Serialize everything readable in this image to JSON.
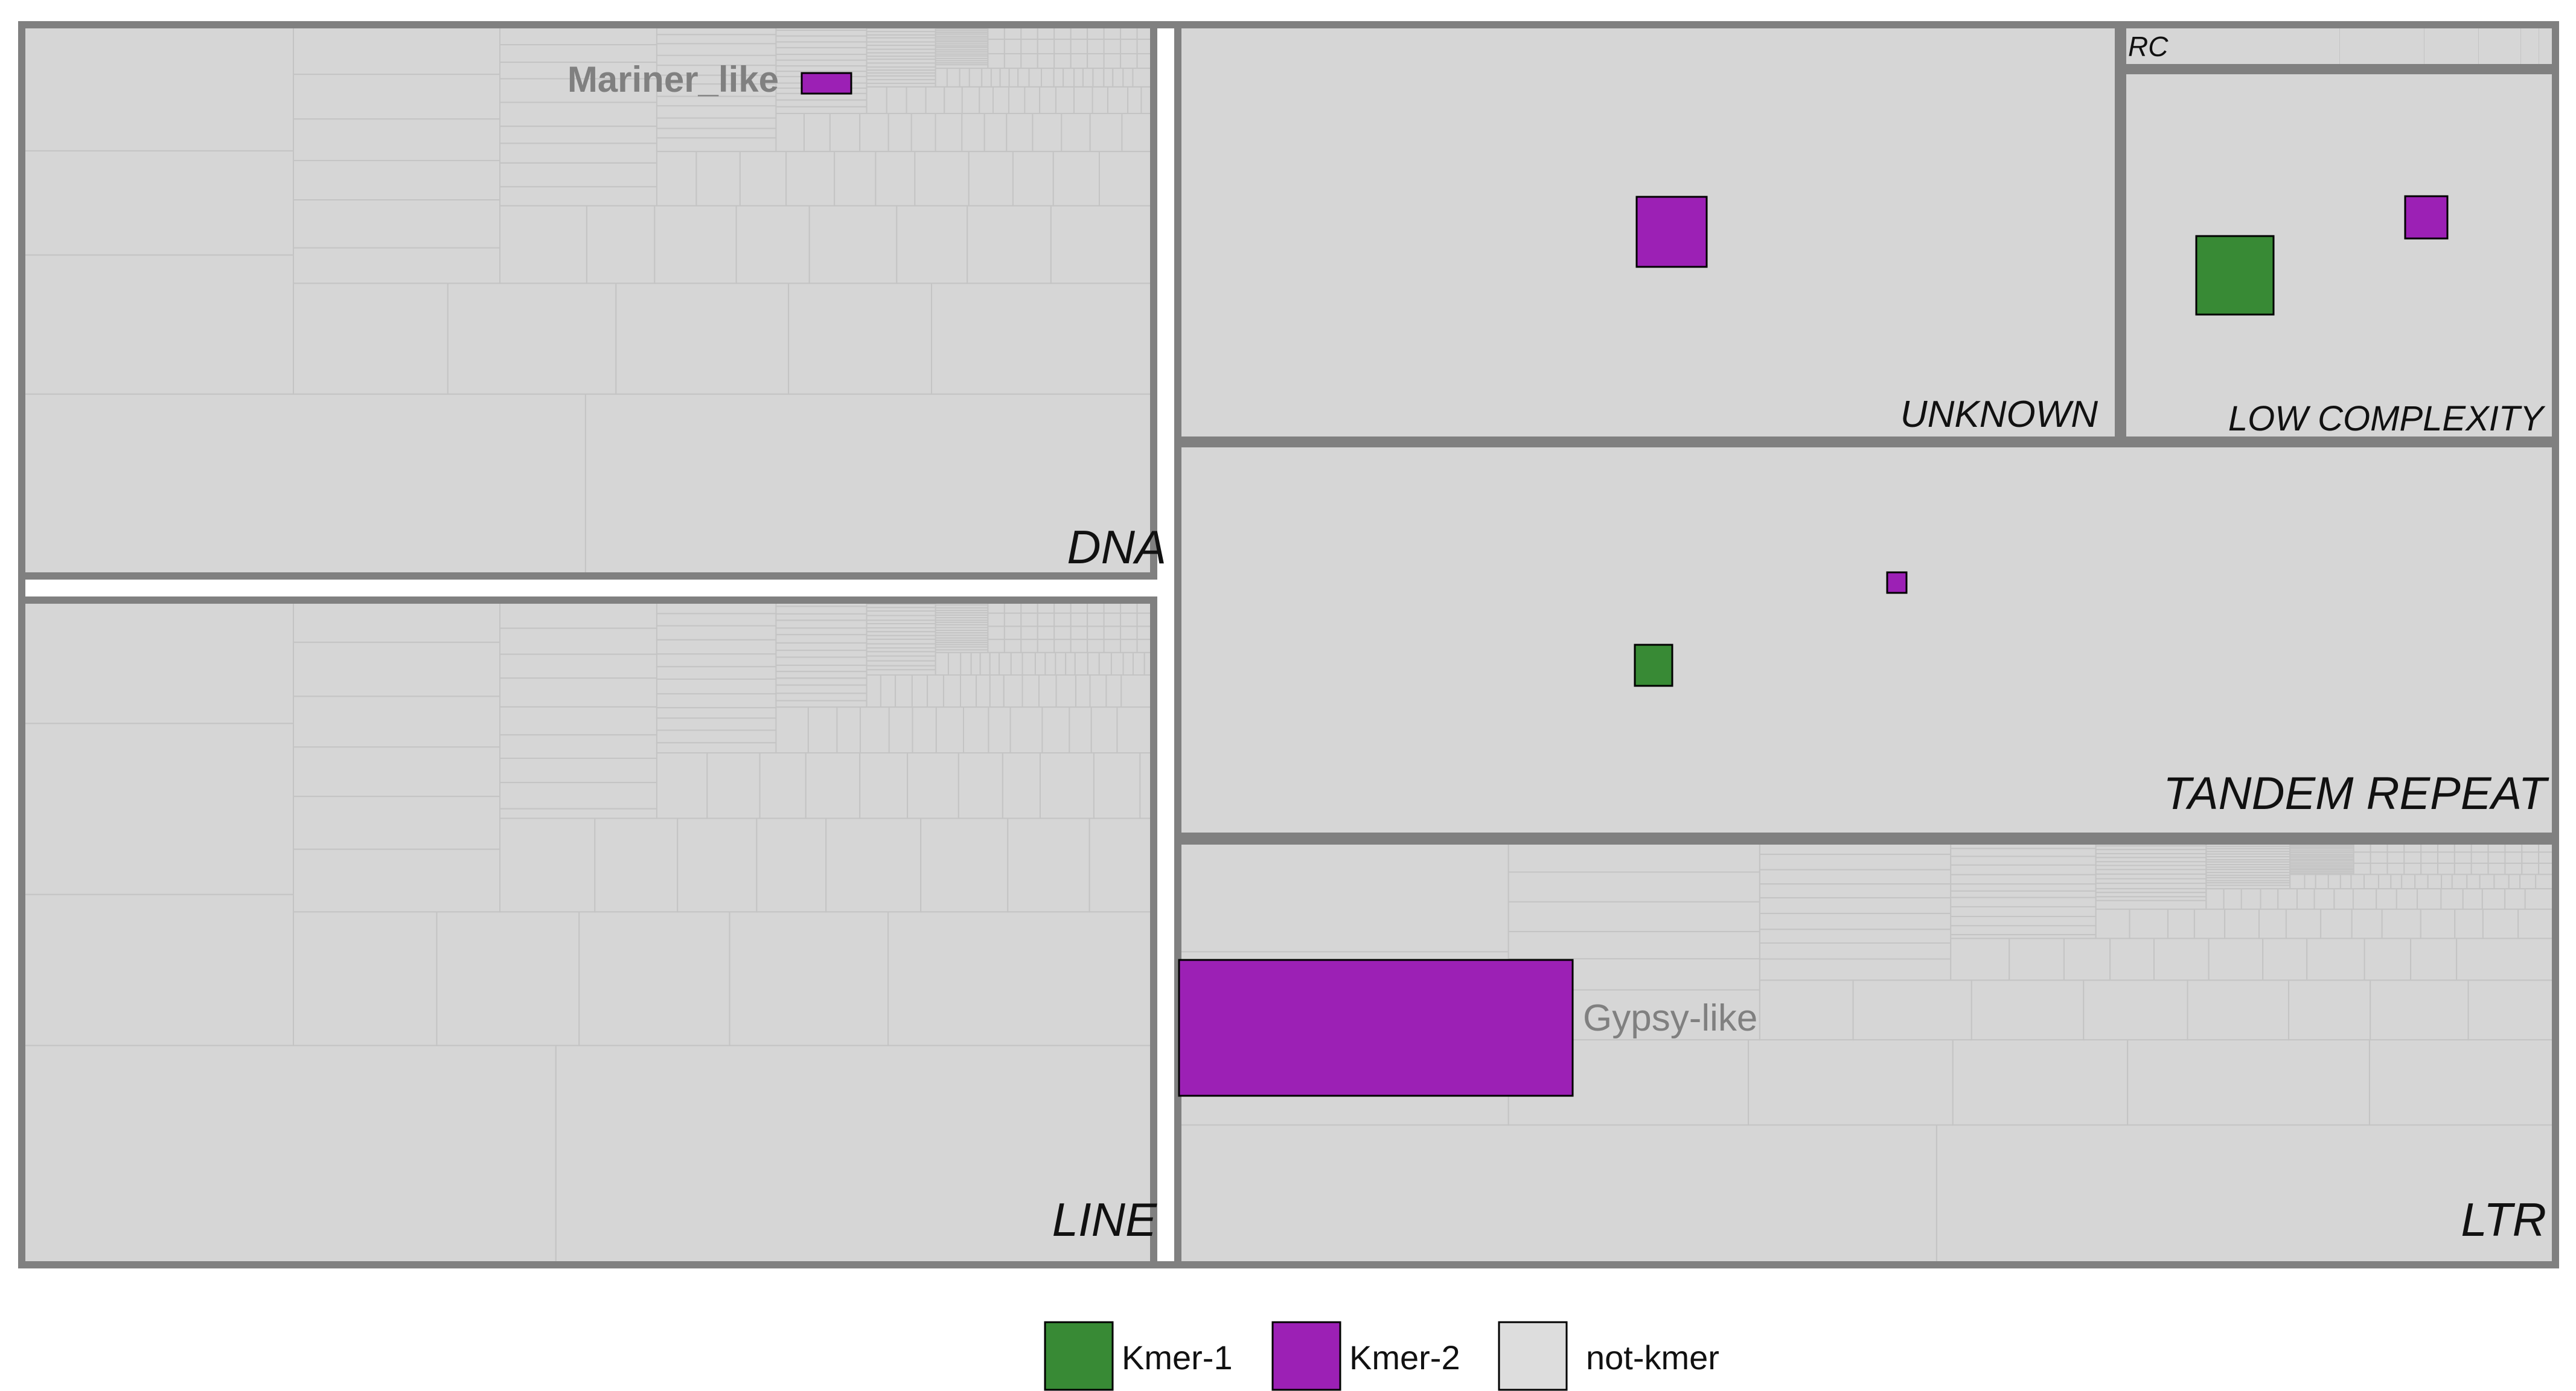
{
  "colors": {
    "background": "#ffffff",
    "tile_fill": "#d6d6d6",
    "tile_minor_stroke": "#c4c4c4",
    "tile_major_stroke": "#808080",
    "kmer1": "#388a35",
    "kmer2": "#9c20b5",
    "mark_stroke": "#000000",
    "category_label": "#111111",
    "family_label": "#808080"
  },
  "chart_data": {
    "type": "treemap",
    "title": "",
    "categories": [
      {
        "key": "dna",
        "name": "DNA"
      },
      {
        "key": "line",
        "name": "LINE"
      },
      {
        "key": "unknown",
        "name": "UNKNOWN"
      },
      {
        "key": "rc",
        "name": "RC"
      },
      {
        "key": "lowcomplexity",
        "name": "LOW COMPLEXITY"
      },
      {
        "key": "tandem",
        "name": "TANDEM REPEAT"
      },
      {
        "key": "ltr",
        "name": "LTR"
      }
    ],
    "highlighted_families": [
      {
        "category": "DNA",
        "family": "Mariner_like",
        "label": "Mariner_like",
        "class": "Kmer-2"
      },
      {
        "category": "LTR",
        "family": "Gypsy-like",
        "label": "Gypsy-like",
        "class": "Kmer-2"
      },
      {
        "category": "UNKNOWN",
        "label": "",
        "class": "Kmer-2"
      },
      {
        "category": "LOW COMPLEXITY",
        "label": "",
        "class": "Kmer-1"
      },
      {
        "category": "LOW COMPLEXITY",
        "label": "",
        "class": "Kmer-2"
      },
      {
        "category": "TANDEM REPEAT",
        "label": "",
        "class": "Kmer-1"
      },
      {
        "category": "TANDEM REPEAT",
        "label": "",
        "class": "Kmer-2"
      }
    ],
    "legend": {
      "placement": "bottom",
      "entries": [
        {
          "label": "Kmer-1",
          "color": "#388a35"
        },
        {
          "label": "Kmer-2",
          "color": "#9c20b5"
        },
        {
          "label": "not-kmer",
          "color": "#dddddd"
        }
      ]
    }
  }
}
